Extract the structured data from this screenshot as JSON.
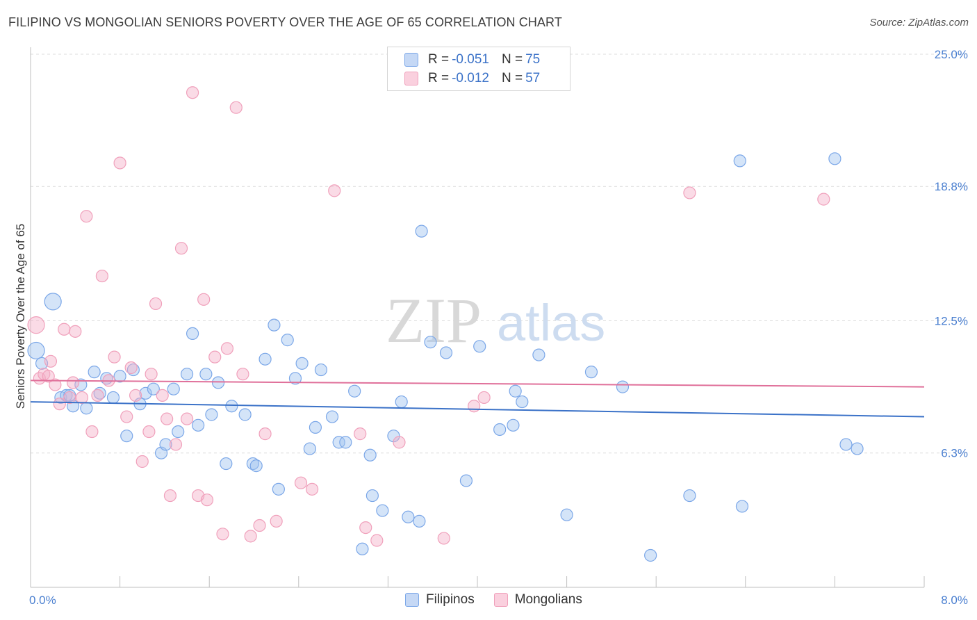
{
  "title": "FILIPINO VS MONGOLIAN SENIORS POVERTY OVER THE AGE OF 65 CORRELATION CHART",
  "source": "Source: ZipAtlas.com",
  "watermark": {
    "zip": "ZIP",
    "atlas": "atlas"
  },
  "legend": {
    "rows": [
      {
        "r_label": "R =",
        "r_value": "-0.051",
        "n_label": "N =",
        "n_value": "75",
        "color": "#7ba7e8"
      },
      {
        "r_label": "R =",
        "r_value": "-0.012",
        "n_label": "N =",
        "n_value": "57",
        "color": "#f0a0bb"
      }
    ]
  },
  "bottom_legend": [
    {
      "label": "Filipinos",
      "color": "#7ba7e8"
    },
    {
      "label": "Mongolians",
      "color": "#f0a0bb"
    }
  ],
  "chart_data": {
    "type": "scatter",
    "title": "FILIPINO VS MONGOLIAN SENIORS POVERTY OVER THE AGE OF 65 CORRELATION CHART",
    "xlabel": "",
    "ylabel": "Seniors Poverty Over the Age of 65",
    "xlim": [
      0,
      8
    ],
    "ylim": [
      0,
      25
    ],
    "x_tick_labels": [
      "0.0%",
      "8.0%"
    ],
    "y_ticks": [
      6.3,
      12.5,
      18.8,
      25.0
    ],
    "y_tick_labels": [
      "6.3%",
      "12.5%",
      "18.8%",
      "25.0%"
    ],
    "grid": true,
    "legend_position": "top-center",
    "series": [
      {
        "name": "Filipinos",
        "color": "#7ba7e8",
        "line_color": "#3b72c8",
        "trend": {
          "x": [
            0,
            8
          ],
          "y": [
            8.7,
            8.0
          ]
        },
        "points": [
          {
            "x": 0.05,
            "y": 11.1,
            "big": true
          },
          {
            "x": 0.1,
            "y": 10.5
          },
          {
            "x": 0.2,
            "y": 13.4,
            "big": true
          },
          {
            "x": 0.27,
            "y": 8.9
          },
          {
            "x": 0.32,
            "y": 9.0
          },
          {
            "x": 0.38,
            "y": 8.5
          },
          {
            "x": 0.45,
            "y": 9.5
          },
          {
            "x": 0.5,
            "y": 8.4
          },
          {
            "x": 0.57,
            "y": 10.1
          },
          {
            "x": 0.62,
            "y": 9.1
          },
          {
            "x": 0.68,
            "y": 9.8
          },
          {
            "x": 0.74,
            "y": 8.9
          },
          {
            "x": 0.8,
            "y": 9.9
          },
          {
            "x": 0.86,
            "y": 7.1
          },
          {
            "x": 0.92,
            "y": 10.2
          },
          {
            "x": 0.98,
            "y": 8.6
          },
          {
            "x": 1.03,
            "y": 9.1
          },
          {
            "x": 1.1,
            "y": 9.3
          },
          {
            "x": 1.17,
            "y": 6.3
          },
          {
            "x": 1.21,
            "y": 6.7
          },
          {
            "x": 1.28,
            "y": 9.3
          },
          {
            "x": 1.32,
            "y": 7.3
          },
          {
            "x": 1.4,
            "y": 10.0
          },
          {
            "x": 1.45,
            "y": 11.9
          },
          {
            "x": 1.5,
            "y": 7.6
          },
          {
            "x": 1.57,
            "y": 10.0
          },
          {
            "x": 1.62,
            "y": 8.1
          },
          {
            "x": 1.68,
            "y": 9.6
          },
          {
            "x": 1.75,
            "y": 5.8
          },
          {
            "x": 1.8,
            "y": 8.5
          },
          {
            "x": 1.92,
            "y": 8.1
          },
          {
            "x": 1.99,
            "y": 5.8
          },
          {
            "x": 2.02,
            "y": 5.7
          },
          {
            "x": 2.1,
            "y": 10.7
          },
          {
            "x": 2.18,
            "y": 12.3
          },
          {
            "x": 2.22,
            "y": 4.6
          },
          {
            "x": 2.3,
            "y": 11.6
          },
          {
            "x": 2.37,
            "y": 9.8
          },
          {
            "x": 2.43,
            "y": 10.5
          },
          {
            "x": 2.5,
            "y": 6.5
          },
          {
            "x": 2.55,
            "y": 7.5
          },
          {
            "x": 2.6,
            "y": 10.2
          },
          {
            "x": 2.7,
            "y": 8.0
          },
          {
            "x": 2.76,
            "y": 6.8
          },
          {
            "x": 2.82,
            "y": 6.8
          },
          {
            "x": 2.9,
            "y": 9.2
          },
          {
            "x": 2.97,
            "y": 1.8
          },
          {
            "x": 3.04,
            "y": 6.2
          },
          {
            "x": 3.06,
            "y": 4.3
          },
          {
            "x": 3.15,
            "y": 3.6
          },
          {
            "x": 3.25,
            "y": 7.1
          },
          {
            "x": 3.32,
            "y": 8.7
          },
          {
            "x": 3.38,
            "y": 3.3
          },
          {
            "x": 3.48,
            "y": 3.1
          },
          {
            "x": 3.5,
            "y": 16.7
          },
          {
            "x": 3.58,
            "y": 11.5
          },
          {
            "x": 3.72,
            "y": 11.0
          },
          {
            "x": 3.9,
            "y": 5.0
          },
          {
            "x": 4.02,
            "y": 11.3
          },
          {
            "x": 4.2,
            "y": 7.4
          },
          {
            "x": 4.32,
            "y": 7.6
          },
          {
            "x": 4.34,
            "y": 9.2
          },
          {
            "x": 4.4,
            "y": 8.7
          },
          {
            "x": 4.55,
            "y": 10.9
          },
          {
            "x": 4.8,
            "y": 3.4
          },
          {
            "x": 5.02,
            "y": 10.1
          },
          {
            "x": 5.3,
            "y": 9.4
          },
          {
            "x": 5.55,
            "y": 1.5
          },
          {
            "x": 5.9,
            "y": 4.3
          },
          {
            "x": 6.35,
            "y": 20.0
          },
          {
            "x": 6.37,
            "y": 3.8
          },
          {
            "x": 7.2,
            "y": 20.1
          },
          {
            "x": 7.3,
            "y": 6.7
          },
          {
            "x": 7.4,
            "y": 6.5
          },
          {
            "x": 0.35,
            "y": 9.0
          }
        ]
      },
      {
        "name": "Mongolians",
        "color": "#f0a0bb",
        "line_color": "#e0709a",
        "trend": {
          "x": [
            0,
            8
          ],
          "y": [
            9.7,
            9.4
          ]
        },
        "points": [
          {
            "x": 0.05,
            "y": 12.3,
            "big": true
          },
          {
            "x": 0.08,
            "y": 9.8
          },
          {
            "x": 0.12,
            "y": 10.0
          },
          {
            "x": 0.18,
            "y": 10.6
          },
          {
            "x": 0.22,
            "y": 9.5
          },
          {
            "x": 0.26,
            "y": 8.6
          },
          {
            "x": 0.3,
            "y": 12.1
          },
          {
            "x": 0.35,
            "y": 8.9
          },
          {
            "x": 0.4,
            "y": 12.0
          },
          {
            "x": 0.46,
            "y": 8.9
          },
          {
            "x": 0.5,
            "y": 17.4
          },
          {
            "x": 0.55,
            "y": 7.3
          },
          {
            "x": 0.6,
            "y": 9.0
          },
          {
            "x": 0.64,
            "y": 14.6
          },
          {
            "x": 0.7,
            "y": 9.7
          },
          {
            "x": 0.75,
            "y": 10.8
          },
          {
            "x": 0.8,
            "y": 19.9
          },
          {
            "x": 0.86,
            "y": 8.0
          },
          {
            "x": 0.9,
            "y": 10.3
          },
          {
            "x": 0.94,
            "y": 9.0
          },
          {
            "x": 1.0,
            "y": 5.9
          },
          {
            "x": 1.06,
            "y": 7.3
          },
          {
            "x": 1.08,
            "y": 10.0
          },
          {
            "x": 1.12,
            "y": 13.3
          },
          {
            "x": 1.18,
            "y": 9.0
          },
          {
            "x": 1.22,
            "y": 7.9
          },
          {
            "x": 1.25,
            "y": 4.3
          },
          {
            "x": 1.3,
            "y": 6.7
          },
          {
            "x": 1.35,
            "y": 15.9
          },
          {
            "x": 1.4,
            "y": 7.9
          },
          {
            "x": 1.45,
            "y": 23.2
          },
          {
            "x": 1.5,
            "y": 4.3
          },
          {
            "x": 1.55,
            "y": 13.5
          },
          {
            "x": 1.58,
            "y": 4.1
          },
          {
            "x": 1.65,
            "y": 10.8
          },
          {
            "x": 1.72,
            "y": 2.5
          },
          {
            "x": 1.76,
            "y": 11.2
          },
          {
            "x": 1.84,
            "y": 22.5
          },
          {
            "x": 1.9,
            "y": 10.0
          },
          {
            "x": 1.97,
            "y": 2.4
          },
          {
            "x": 2.05,
            "y": 2.9
          },
          {
            "x": 2.1,
            "y": 7.2
          },
          {
            "x": 2.2,
            "y": 3.1
          },
          {
            "x": 2.42,
            "y": 4.9
          },
          {
            "x": 2.52,
            "y": 4.6
          },
          {
            "x": 2.72,
            "y": 18.6
          },
          {
            "x": 2.95,
            "y": 7.2
          },
          {
            "x": 3.0,
            "y": 2.8
          },
          {
            "x": 3.1,
            "y": 2.2
          },
          {
            "x": 3.3,
            "y": 6.8
          },
          {
            "x": 3.7,
            "y": 2.3
          },
          {
            "x": 3.97,
            "y": 8.5
          },
          {
            "x": 4.06,
            "y": 8.9
          },
          {
            "x": 5.9,
            "y": 18.5
          },
          {
            "x": 7.1,
            "y": 18.2
          },
          {
            "x": 0.38,
            "y": 9.6
          },
          {
            "x": 0.16,
            "y": 9.9
          }
        ]
      }
    ]
  }
}
